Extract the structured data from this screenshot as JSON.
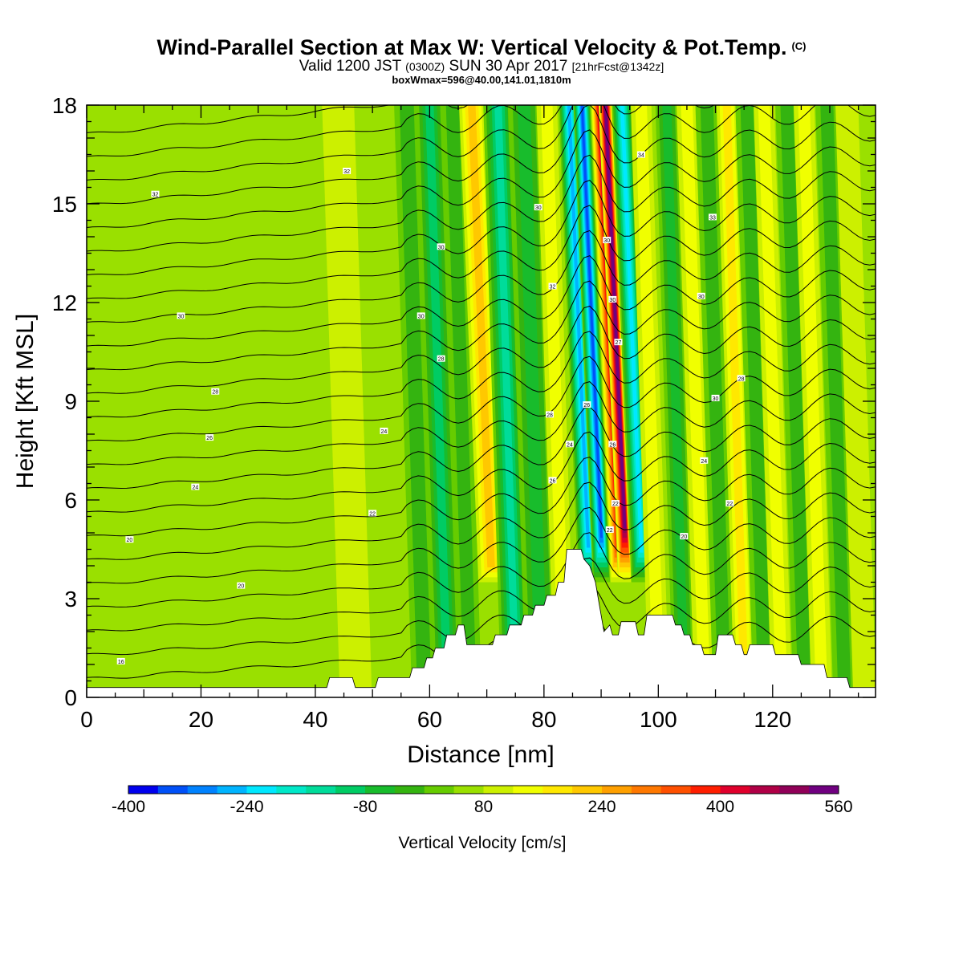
{
  "header": {
    "title": "Wind-Parallel Section at Max W: Vertical Velocity & Pot.Temp.",
    "copyright_mark": "(C)",
    "subtitle_parts": [
      "Valid 1200 JST",
      "(0300Z)",
      "SUN 30 Apr 2017",
      "[21hrFcst@1342z]"
    ],
    "subtitle2": "boxWmax=596@40.00,141.01,1810m"
  },
  "chart_data": {
    "type": "heatmap",
    "xlabel": "Distance [nm]",
    "ylabel": "Height [Kft MSL]",
    "xlim": [
      0,
      138
    ],
    "ylim": [
      0,
      18
    ],
    "x_ticks": [
      0,
      20,
      40,
      60,
      80,
      100,
      120
    ],
    "y_ticks": [
      0,
      3,
      6,
      9,
      12,
      15,
      18
    ],
    "background_w": 40,
    "w_bands": [
      {
        "x": 45.5,
        "w": 80,
        "width": 2.8
      },
      {
        "x": 52,
        "w": 55,
        "width": 2.5
      },
      {
        "x": 57.5,
        "w": -70,
        "width": 2.2
      },
      {
        "x": 61.5,
        "w": -120,
        "width": 2.4
      },
      {
        "x": 65.5,
        "w": -60,
        "width": 2.0
      },
      {
        "x": 69,
        "w": 220,
        "width": 2.2
      },
      {
        "x": 73.5,
        "w": -170,
        "width": 2.6
      },
      {
        "x": 78,
        "w": -110,
        "width": 2.8
      },
      {
        "x": 82,
        "w": 130,
        "width": 1.8
      },
      {
        "x": 86,
        "w": -300,
        "width": 1.8
      },
      {
        "x": 88.3,
        "w": -390,
        "width": 1.5
      },
      {
        "x": 91.2,
        "w": 420,
        "width": 1.3
      },
      {
        "x": 92.4,
        "w": 560,
        "width": 1.2
      },
      {
        "x": 95.3,
        "w": -240,
        "width": 1.8
      },
      {
        "x": 98.5,
        "w": 120,
        "width": 1.8
      },
      {
        "x": 103,
        "w": -90,
        "width": 2.0
      },
      {
        "x": 106.5,
        "w": 140,
        "width": 1.8
      },
      {
        "x": 110,
        "w": -70,
        "width": 2.0
      },
      {
        "x": 113.5,
        "w": 160,
        "width": 1.8
      },
      {
        "x": 117,
        "w": -70,
        "width": 2.0
      },
      {
        "x": 120,
        "w": 140,
        "width": 1.8
      },
      {
        "x": 124,
        "w": -60,
        "width": 2.0
      },
      {
        "x": 127,
        "w": 120,
        "width": 1.8
      },
      {
        "x": 131,
        "w": -50,
        "width": 2.0
      },
      {
        "x": 134.5,
        "w": 80,
        "width": 2.0
      }
    ],
    "terrain_kft": [
      [
        0,
        0.3
      ],
      [
        42,
        0.3
      ],
      [
        42.5,
        0.6
      ],
      [
        46.5,
        0.6
      ],
      [
        47,
        0.3
      ],
      [
        50.5,
        0.3
      ],
      [
        51,
        0.6
      ],
      [
        56.5,
        0.6
      ],
      [
        57,
        0.9
      ],
      [
        59,
        0.9
      ],
      [
        59.5,
        1.2
      ],
      [
        60.5,
        1.2
      ],
      [
        61,
        1.5
      ],
      [
        62.5,
        1.5
      ],
      [
        63,
        1.9
      ],
      [
        64.5,
        1.9
      ],
      [
        65,
        2.2
      ],
      [
        66,
        2.2
      ],
      [
        66.5,
        1.6
      ],
      [
        71,
        1.6
      ],
      [
        71.5,
        1.9
      ],
      [
        73.5,
        1.9
      ],
      [
        74,
        2.2
      ],
      [
        76,
        2.2
      ],
      [
        76.5,
        2.5
      ],
      [
        78,
        2.5
      ],
      [
        78.5,
        2.8
      ],
      [
        80,
        2.8
      ],
      [
        80.5,
        3.1
      ],
      [
        82,
        3.1
      ],
      [
        82.5,
        3.5
      ],
      [
        83.5,
        3.5
      ],
      [
        84,
        4.5
      ],
      [
        86.5,
        4.5
      ],
      [
        87,
        4.2
      ],
      [
        88,
        4.0
      ],
      [
        89,
        3.5
      ],
      [
        89.5,
        3.0
      ],
      [
        90.5,
        2.0
      ],
      [
        91.5,
        2.2
      ],
      [
        92,
        1.9
      ],
      [
        93,
        1.9
      ],
      [
        93.5,
        2.3
      ],
      [
        96,
        2.3
      ],
      [
        96.5,
        1.9
      ],
      [
        97.5,
        1.9
      ],
      [
        98,
        2.5
      ],
      [
        102.5,
        2.5
      ],
      [
        103,
        2.2
      ],
      [
        104,
        2.2
      ],
      [
        104.5,
        1.9
      ],
      [
        105.5,
        1.9
      ],
      [
        106,
        1.6
      ],
      [
        107.5,
        1.6
      ],
      [
        108,
        1.3
      ],
      [
        110,
        1.3
      ],
      [
        110.5,
        1.9
      ],
      [
        113,
        1.9
      ],
      [
        113.5,
        1.6
      ],
      [
        114.5,
        1.6
      ],
      [
        115,
        1.3
      ],
      [
        115.5,
        1.3
      ],
      [
        116,
        1.6
      ],
      [
        120,
        1.6
      ],
      [
        120.5,
        1.3
      ],
      [
        124.5,
        1.3
      ],
      [
        125,
        1.0
      ],
      [
        129,
        1.0
      ],
      [
        129.5,
        0.6
      ],
      [
        133,
        0.6
      ],
      [
        133.5,
        0.3
      ],
      [
        138,
        0.3
      ]
    ],
    "theta_contour_labels": [
      {
        "x": 6,
        "y": 1.1,
        "text": "16"
      },
      {
        "x": 27,
        "y": 3.4,
        "text": "20"
      },
      {
        "x": 7.5,
        "y": 4.8,
        "text": "20"
      },
      {
        "x": 50,
        "y": 5.6,
        "text": "22"
      },
      {
        "x": 19,
        "y": 6.4,
        "text": "24"
      },
      {
        "x": 52,
        "y": 8.1,
        "text": "24"
      },
      {
        "x": 21.5,
        "y": 7.9,
        "text": "26"
      },
      {
        "x": 22.5,
        "y": 9.3,
        "text": "28"
      },
      {
        "x": 16.5,
        "y": 11.6,
        "text": "30"
      },
      {
        "x": 12,
        "y": 15.3,
        "text": "32"
      },
      {
        "x": 45.5,
        "y": 16.0,
        "text": "32"
      },
      {
        "x": 62,
        "y": 10.3,
        "text": "28"
      },
      {
        "x": 58.5,
        "y": 11.6,
        "text": "30"
      },
      {
        "x": 62,
        "y": 13.7,
        "text": "30"
      },
      {
        "x": 81.5,
        "y": 6.6,
        "text": "26"
      },
      {
        "x": 81,
        "y": 8.6,
        "text": "28"
      },
      {
        "x": 81.5,
        "y": 12.5,
        "text": "32"
      },
      {
        "x": 79,
        "y": 14.9,
        "text": "30"
      },
      {
        "x": 84.5,
        "y": 7.7,
        "text": "24"
      },
      {
        "x": 87.5,
        "y": 8.9,
        "text": "26"
      },
      {
        "x": 91,
        "y": 13.9,
        "text": "30"
      },
      {
        "x": 92,
        "y": 12.1,
        "text": "30"
      },
      {
        "x": 93,
        "y": 10.8,
        "text": "27"
      },
      {
        "x": 92,
        "y": 7.7,
        "text": "26"
      },
      {
        "x": 92.5,
        "y": 5.9,
        "text": "22"
      },
      {
        "x": 91.5,
        "y": 5.1,
        "text": "22"
      },
      {
        "x": 97,
        "y": 16.5,
        "text": "34"
      },
      {
        "x": 109.5,
        "y": 14.6,
        "text": "33"
      },
      {
        "x": 107.5,
        "y": 12.2,
        "text": "30"
      },
      {
        "x": 114.5,
        "y": 9.7,
        "text": "28"
      },
      {
        "x": 110,
        "y": 9.1,
        "text": "30"
      },
      {
        "x": 108,
        "y": 7.2,
        "text": "24"
      },
      {
        "x": 112.5,
        "y": 5.9,
        "text": "22"
      },
      {
        "x": 104.5,
        "y": 4.9,
        "text": "20"
      }
    ],
    "colorbar": {
      "label": "Vertical Velocity [cm/s]",
      "min": -400,
      "step": 40,
      "tick_labels": [
        "-400",
        "-240",
        "-80",
        "80",
        "240",
        "400",
        "560"
      ],
      "colors": [
        "#0000ee",
        "#0050f8",
        "#0082ff",
        "#00b4ff",
        "#00e8ff",
        "#00e8c8",
        "#00dc9a",
        "#00cc64",
        "#18bc2c",
        "#34b410",
        "#66cc00",
        "#9ae000",
        "#ccf000",
        "#f0ff00",
        "#ffe800",
        "#ffc800",
        "#ffa000",
        "#ff7800",
        "#ff5000",
        "#ff1e00",
        "#e0002c",
        "#b00046",
        "#900058",
        "#700080"
      ]
    }
  }
}
